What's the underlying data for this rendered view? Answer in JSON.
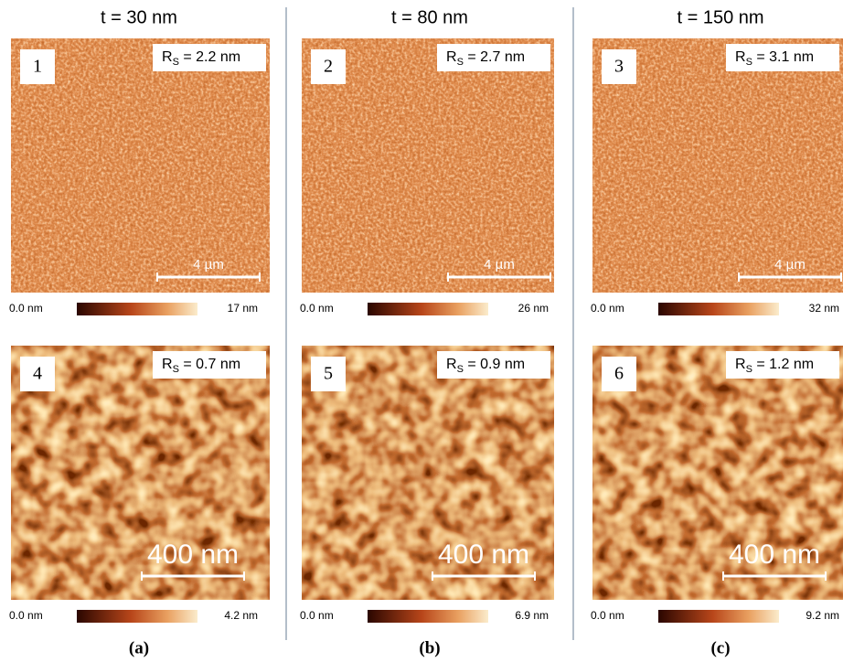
{
  "columns": [
    {
      "title": "t = 30 nm",
      "caption": "(a)",
      "panels": [
        {
          "number": "1",
          "rs": {
            "symbol": "R",
            "subscript": "S",
            "value": " = 2.2 nm"
          },
          "scale_bar": "4 µm",
          "colorbar": {
            "min": "0.0 nm",
            "max": "17 nm"
          }
        },
        {
          "number": "4",
          "rs": {
            "symbol": "R",
            "subscript": "S",
            "value": " = 0.7 nm"
          },
          "scale_bar": "400 nm",
          "colorbar": {
            "min": "0.0 nm",
            "max": "4.2 nm"
          }
        }
      ]
    },
    {
      "title": "t = 80 nm",
      "caption": "(b)",
      "panels": [
        {
          "number": "2",
          "rs": {
            "symbol": "R",
            "subscript": "S",
            "value": " = 2.7 nm"
          },
          "scale_bar": "4 µm",
          "colorbar": {
            "min": "0.0 nm",
            "max": "26 nm"
          }
        },
        {
          "number": "5",
          "rs": {
            "symbol": "R",
            "subscript": "S",
            "value": " = 0.9 nm"
          },
          "scale_bar": "400 nm",
          "colorbar": {
            "min": "0.0 nm",
            "max": "6.9 nm"
          }
        }
      ]
    },
    {
      "title": "t = 150 nm",
      "caption": "(c)",
      "panels": [
        {
          "number": "3",
          "rs": {
            "symbol": "R",
            "subscript": "S",
            "value": " = 3.1 nm"
          },
          "scale_bar": "4 µm",
          "colorbar": {
            "min": "0.0 nm",
            "max": "32 nm"
          }
        },
        {
          "number": "6",
          "rs": {
            "symbol": "R",
            "subscript": "S",
            "value": " = 1.2 nm"
          },
          "scale_bar": "400 nm",
          "colorbar": {
            "min": "0.0 nm",
            "max": "9.2 nm"
          }
        }
      ]
    }
  ]
}
